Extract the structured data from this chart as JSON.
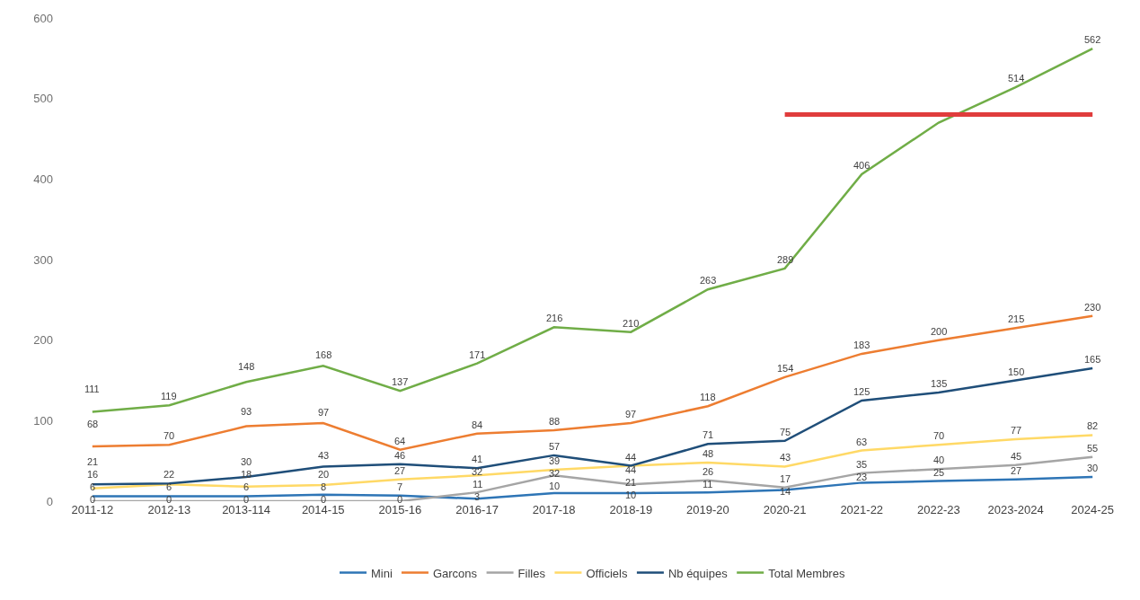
{
  "chart_data": {
    "type": "line",
    "categories": [
      "2011-12",
      "2012-13",
      "2013-114",
      "2014-15",
      "2015-16",
      "2016-17",
      "2017-18",
      "2018-19",
      "2019-20",
      "2020-21",
      "2021-22",
      "2022-23",
      "2023-2024",
      "2024-25"
    ],
    "series": [
      {
        "name": "Mini",
        "color": "#2e75b6",
        "values": [
          6,
          6,
          6,
          8,
          7,
          3,
          10,
          10,
          11,
          14,
          23,
          25,
          27,
          30
        ],
        "value_labels": [
          "6",
          "6",
          "6",
          "8",
          "7",
          "3",
          "10",
          "10",
          "11",
          "14",
          "23",
          "25",
          "27",
          "30"
        ]
      },
      {
        "name": "Garcons",
        "color": "#ed7d31",
        "values": [
          68,
          70,
          93,
          97,
          64,
          84,
          88,
          97,
          118,
          154,
          183,
          200,
          215,
          230
        ],
        "value_labels": [
          "68",
          "70",
          "93",
          "97",
          "64",
          "84",
          "88",
          "97",
          "118",
          "154",
          "183",
          "200",
          "215",
          "230"
        ]
      },
      {
        "name": "Filles",
        "color": "#a5a5a5",
        "values": [
          0,
          0,
          0,
          0,
          0,
          11,
          32,
          21,
          26,
          17,
          35,
          40,
          45,
          55
        ],
        "value_labels": [
          "0",
          "0",
          "0",
          "0",
          "0",
          "11",
          "32",
          "21",
          "26",
          "17",
          "35",
          "40",
          "45",
          "55"
        ]
      },
      {
        "name": "Officiels",
        "color": "#ffd966",
        "values": [
          16,
          21,
          18,
          20,
          27,
          32,
          39,
          44,
          48,
          43,
          63,
          70,
          77,
          82
        ],
        "value_labels": [
          "16",
          null,
          "18",
          "20",
          "27",
          "32",
          "39",
          "44",
          "48",
          "43",
          "63",
          "70",
          "77",
          "82"
        ]
      },
      {
        "name": "Nb équipes",
        "color": "#1f4e79",
        "values": [
          21,
          22,
          30,
          43,
          46,
          41,
          57,
          44,
          71,
          75,
          125,
          135,
          150,
          165
        ],
        "value_labels": [
          "21",
          "22",
          "30",
          "43",
          "46",
          "41",
          "57",
          "44",
          "71",
          "75",
          "125",
          "135",
          "150",
          "165"
        ]
      },
      {
        "name": "Total Membres",
        "color": "#70ad47",
        "values": [
          111,
          119,
          148,
          168,
          137,
          171,
          216,
          210,
          263,
          289,
          406,
          470,
          514,
          562
        ],
        "value_labels": [
          "111",
          "119",
          "148",
          "168",
          "137",
          "171",
          "216",
          "210",
          "263",
          "289",
          "406",
          null,
          "514",
          "562"
        ]
      },
      {
        "color": "#e03c3c",
        "values": [
          null,
          null,
          null,
          null,
          null,
          null,
          null,
          null,
          null,
          480,
          480,
          480,
          480,
          480
        ]
      }
    ],
    "ylim": [
      0,
      600
    ],
    "yticks": [
      0,
      100,
      200,
      300,
      400,
      500,
      600
    ],
    "legend": "bottom",
    "marker": "none",
    "line_style": "solid"
  }
}
